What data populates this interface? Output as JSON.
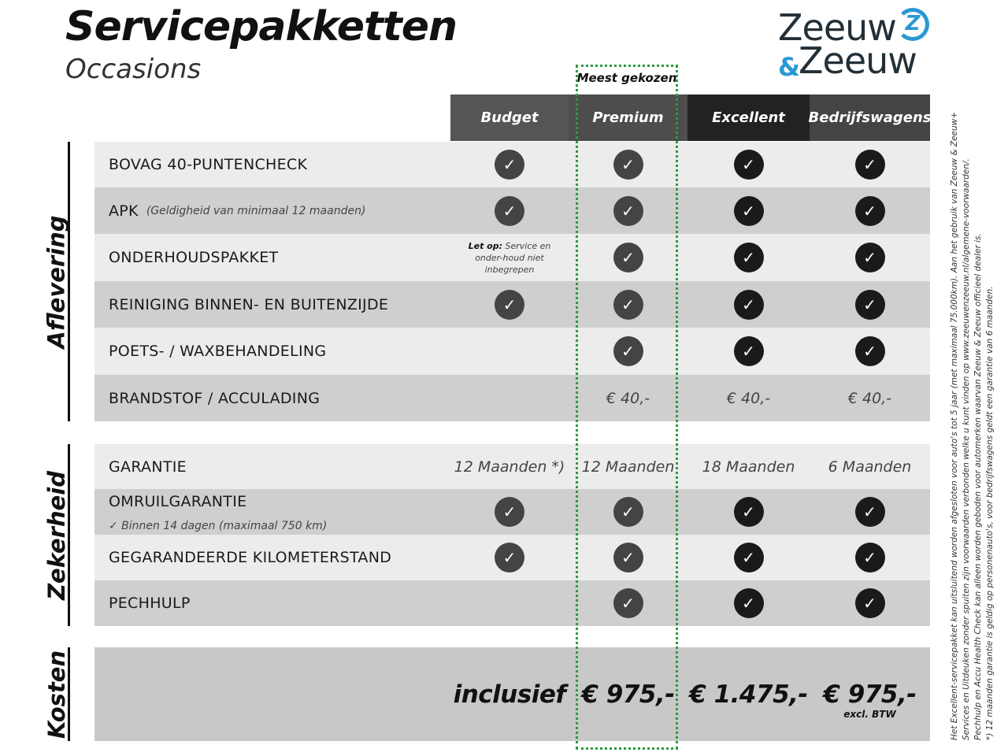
{
  "header": {
    "title": "Servicepakketten",
    "subtitle": "Occasions",
    "logo_text": "Zeeuw & Zeeuw",
    "most_chosen": "Meest gekozen"
  },
  "colors": {
    "accent_dotted": "#2e9a3e",
    "logo_blue": "#2a98d4",
    "logo_dark": "#243038"
  },
  "packages": [
    {
      "label": "Budget",
      "color": "#555555"
    },
    {
      "label": "Premium",
      "color": "#4d4d4d"
    },
    {
      "label": "Excellent",
      "color": "#222222"
    },
    {
      "label": "Bedrijfswagens",
      "color": "#444444"
    }
  ],
  "sections": [
    {
      "label": "Aflevering",
      "rows": [
        {
          "label": "BOVAG 40-PUNTENCHECK",
          "cells": [
            "check",
            "check",
            "check",
            "check"
          ]
        },
        {
          "label": "APK",
          "note": "(Geldigheid van minimaal 12 maanden)",
          "cells": [
            "check",
            "check",
            "check",
            "check"
          ]
        },
        {
          "label": "ONDERHOUDSPAKKET",
          "cells": [
            "",
            "check",
            "check",
            "check"
          ],
          "budget_note_bold": "Let op:",
          "budget_note": "Service en onder-houd niet inbegrepen"
        },
        {
          "label": "REINIGING BINNEN- EN BUITENZIJDE",
          "cells": [
            "check",
            "check",
            "check",
            "check"
          ]
        },
        {
          "label": "POETS- / WAXBEHANDELING",
          "cells": [
            "",
            "check",
            "check",
            "check"
          ]
        },
        {
          "label": "BRANDSTOF / ACCULADING",
          "cells": [
            "",
            "€ 40,-",
            "€ 40,-",
            "€ 40,-"
          ]
        }
      ]
    },
    {
      "label": "Zekerheid",
      "rows": [
        {
          "label": "GARANTIE",
          "cells": [
            "12 Maanden *)",
            "12 Maanden",
            "18 Maanden",
            "6 Maanden"
          ]
        },
        {
          "label": "OMRUILGARANTIE",
          "sub": "✓   Binnen 14 dagen (maximaal 750 km)",
          "cells": [
            "check",
            "check",
            "check",
            "check"
          ]
        },
        {
          "label": "GEGARANDEERDE KILOMETERSTAND",
          "cells": [
            "check",
            "check",
            "check",
            "check"
          ]
        },
        {
          "label": "PECHHULP",
          "cells": [
            "",
            "check",
            "check",
            "check"
          ]
        }
      ]
    },
    {
      "label": "Kosten",
      "rows": [
        {
          "label": "",
          "cells": [
            "inclusief",
            "€ 975,-",
            "€ 1.475,-",
            "€ 975,-"
          ],
          "last_note": "excl. BTW"
        }
      ]
    }
  ],
  "footnotes": [
    "Het Excellent-servicepakket kan uitsluitend worden afgesloten voor auto's tot 5 jaar (met maximaal 75.000km). Aan het gebruik van Zeeuw & Zeeuw+",
    "Services en Uitdeuken zonder spuiten zijn voorwaarden verbonden welke u kunt vinden op www.zeeuwenzeeuw.nl/algemene-voorwaarden/.",
    "Pechhulp en Accu Health Check kan alleen worden geboden voor automerken waarvan Zeeuw & Zeeuw officieel dealer is.",
    "*) 12 maanden garantie is geldig op personenauto's, voor bedrijfswagens geldt een garantie van 6 maanden."
  ]
}
